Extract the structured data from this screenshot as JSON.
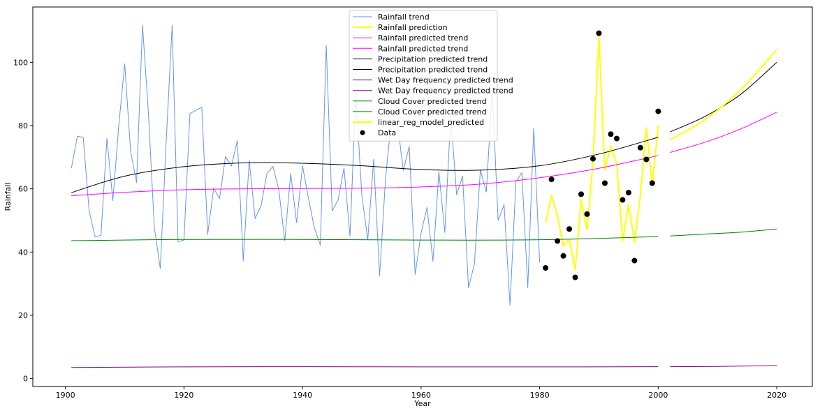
{
  "chart_data": {
    "type": "line",
    "xlabel": "Year",
    "ylabel": "Rainfall",
    "xlim": [
      1894.5,
      2026
    ],
    "ylim": [
      -2.5,
      117.5
    ],
    "xticks": [
      1900,
      1920,
      1940,
      1960,
      1980,
      2000,
      2020
    ],
    "yticks": [
      0,
      20,
      40,
      60,
      80,
      100
    ],
    "grid": false,
    "legend_position": "upper-center",
    "series": [
      {
        "name": "Rainfall trend",
        "color": "#6495ed",
        "width": 1,
        "x": [
          1901,
          1902,
          1903,
          1904,
          1905,
          1906,
          1907,
          1908,
          1909,
          1910,
          1911,
          1912,
          1913,
          1914,
          1915,
          1916,
          1917,
          1918,
          1919,
          1920,
          1921,
          1922,
          1923,
          1924,
          1925,
          1926,
          1927,
          1928,
          1929,
          1930,
          1931,
          1932,
          1933,
          1934,
          1935,
          1936,
          1937,
          1938,
          1939,
          1940,
          1941,
          1942,
          1943,
          1944,
          1945,
          1946,
          1947,
          1948,
          1949,
          1950,
          1951,
          1952,
          1953,
          1954,
          1955,
          1956,
          1957,
          1958,
          1959,
          1960,
          1961,
          1962,
          1963,
          1964,
          1965,
          1966,
          1967,
          1968,
          1969,
          1970,
          1971,
          1972,
          1973,
          1974,
          1975,
          1976,
          1977,
          1978,
          1979,
          1980
        ],
        "y": [
          66.5,
          76.6,
          76.3,
          53.0,
          44.8,
          45.3,
          76.0,
          56.3,
          80.0,
          99.5,
          71.8,
          62.0,
          111.8,
          84.0,
          47.8,
          34.8,
          75.0,
          111.7,
          43.3,
          43.8,
          83.8,
          84.8,
          85.8,
          45.6,
          60.2,
          56.9,
          70.2,
          67.2,
          75.3,
          37.2,
          69.0,
          50.6,
          54.6,
          64.9,
          67.1,
          59.7,
          43.6,
          64.8,
          49.3,
          67.2,
          57.0,
          47.6,
          42.2,
          105.3,
          53.0,
          56.5,
          66.6,
          45.0,
          90.0,
          58.0,
          43.9,
          69.3,
          32.5,
          63.2,
          82.0,
          81.0,
          65.8,
          73.4,
          32.9,
          46.0,
          54.1,
          37.1,
          65.4,
          46.2,
          83.0,
          58.1,
          64.0,
          28.7,
          36.3,
          66.0,
          59.0,
          91.0,
          50.0,
          55.0,
          23.2,
          62.3,
          65.1,
          28.8,
          79.2,
          36.7
        ]
      },
      {
        "name": "Rainfall prediction",
        "color": "#ffff00",
        "width": 2,
        "x": [
          1981,
          1982,
          1983,
          1984,
          1985,
          1986,
          1987,
          1988,
          1989,
          1990,
          1991,
          1992,
          1993,
          1994,
          1995,
          1996,
          1997,
          1998,
          1999,
          2000
        ],
        "y": [
          49.2,
          58.0,
          51.5,
          42.0,
          44.0,
          34.5,
          56.5,
          47.0,
          68.5,
          108.0,
          66.0,
          73.5,
          68.0,
          43.5,
          55.0,
          43.0,
          58.0,
          79.3,
          61.0,
          80.0
        ]
      },
      {
        "name": "Rainfall predicted trend",
        "color": "#ff00ff",
        "width": 1,
        "x": [
          1901,
          1910,
          1920,
          1930,
          1940,
          1950,
          1960,
          1970,
          1980,
          1990,
          2000
        ],
        "y": [
          57.8,
          58.9,
          59.7,
          60.0,
          60.1,
          60.2,
          60.6,
          61.5,
          63.5,
          66.5,
          70.5
        ]
      },
      {
        "name": "Rainfall predicted trend",
        "color": "#ff00ff",
        "width": 1,
        "x": [
          2002,
          2008,
          2014,
          2020
        ],
        "y": [
          71.5,
          74.8,
          79.0,
          84.2
        ]
      },
      {
        "name": "Precipitation predicted trend",
        "color": "#000000",
        "width": 1,
        "x": [
          1901,
          1910,
          1920,
          1930,
          1940,
          1950,
          1960,
          1970,
          1980,
          1990,
          2000
        ],
        "y": [
          58.8,
          64.0,
          67.0,
          68.2,
          68.1,
          67.3,
          66.1,
          65.9,
          67.3,
          71.0,
          76.3
        ]
      },
      {
        "name": "Precipitation predicted trend",
        "color": "#000000",
        "width": 1,
        "x": [
          2002,
          2008,
          2014,
          2020
        ],
        "y": [
          78.0,
          83.0,
          90.0,
          100.0
        ]
      },
      {
        "name": "Wet Day frequency predicted trend",
        "color": "#800080",
        "width": 1,
        "x": [
          1901,
          1920,
          1940,
          1960,
          1980,
          2000
        ],
        "y": [
          3.5,
          3.7,
          3.75,
          3.7,
          3.7,
          3.75
        ]
      },
      {
        "name": "Wet Day frequency predicted trend",
        "color": "#800080",
        "width": 1,
        "x": [
          2002,
          2010,
          2020
        ],
        "y": [
          3.75,
          3.85,
          4.1
        ]
      },
      {
        "name": "Cloud Cover predicted trend",
        "color": "#008000",
        "width": 1,
        "x": [
          1901,
          1920,
          1940,
          1960,
          1980,
          2000
        ],
        "y": [
          43.6,
          44.0,
          44.0,
          43.8,
          43.9,
          44.9
        ]
      },
      {
        "name": "Cloud Cover predicted trend",
        "color": "#008000",
        "width": 1,
        "x": [
          2002,
          2008,
          2014,
          2020
        ],
        "y": [
          45.1,
          45.7,
          46.3,
          47.3
        ]
      },
      {
        "name": "linear_reg_model_predicted",
        "color": "#ffff00",
        "width": 2,
        "x": [
          2002,
          2008,
          2014,
          2020
        ],
        "y": [
          75.5,
          82.0,
          91.5,
          104.0
        ]
      }
    ],
    "scatter": {
      "name": "Data",
      "color": "#000000",
      "x": [
        1981,
        1982,
        1983,
        1984,
        1985,
        1986,
        1987,
        1988,
        1989,
        1990,
        1991,
        1992,
        1993,
        1994,
        1995,
        1996,
        1997,
        1998,
        1999,
        2000
      ],
      "y": [
        35.0,
        63.0,
        43.5,
        38.8,
        47.3,
        32.0,
        58.3,
        52.0,
        69.5,
        109.2,
        61.8,
        77.3,
        75.9,
        56.5,
        58.8,
        37.3,
        73.0,
        69.3,
        61.8,
        84.5
      ]
    },
    "legend": [
      {
        "label": "Rainfall trend",
        "color": "#6495ed",
        "kind": "line",
        "width": 1
      },
      {
        "label": "Rainfall prediction",
        "color": "#ffff00",
        "kind": "line",
        "width": 2
      },
      {
        "label": "Rainfall predicted trend",
        "color": "#ff00ff",
        "kind": "line",
        "width": 1
      },
      {
        "label": "Rainfall predicted trend",
        "color": "#ff00ff",
        "kind": "line",
        "width": 1
      },
      {
        "label": "Precipitation predicted trend",
        "color": "#000000",
        "kind": "line",
        "width": 1
      },
      {
        "label": "Precipitation predicted trend",
        "color": "#000000",
        "kind": "line",
        "width": 1
      },
      {
        "label": "Wet Day frequency predicted trend",
        "color": "#800080",
        "kind": "line",
        "width": 1
      },
      {
        "label": "Wet Day frequency predicted trend",
        "color": "#800080",
        "kind": "line",
        "width": 1
      },
      {
        "label": "Cloud Cover predicted trend",
        "color": "#008000",
        "kind": "line",
        "width": 1
      },
      {
        "label": "Cloud Cover predicted trend",
        "color": "#008000",
        "kind": "line",
        "width": 1
      },
      {
        "label": "linear_reg_model_predicted",
        "color": "#ffff00",
        "kind": "line",
        "width": 2
      },
      {
        "label": "Data",
        "color": "#000000",
        "kind": "marker"
      }
    ]
  }
}
